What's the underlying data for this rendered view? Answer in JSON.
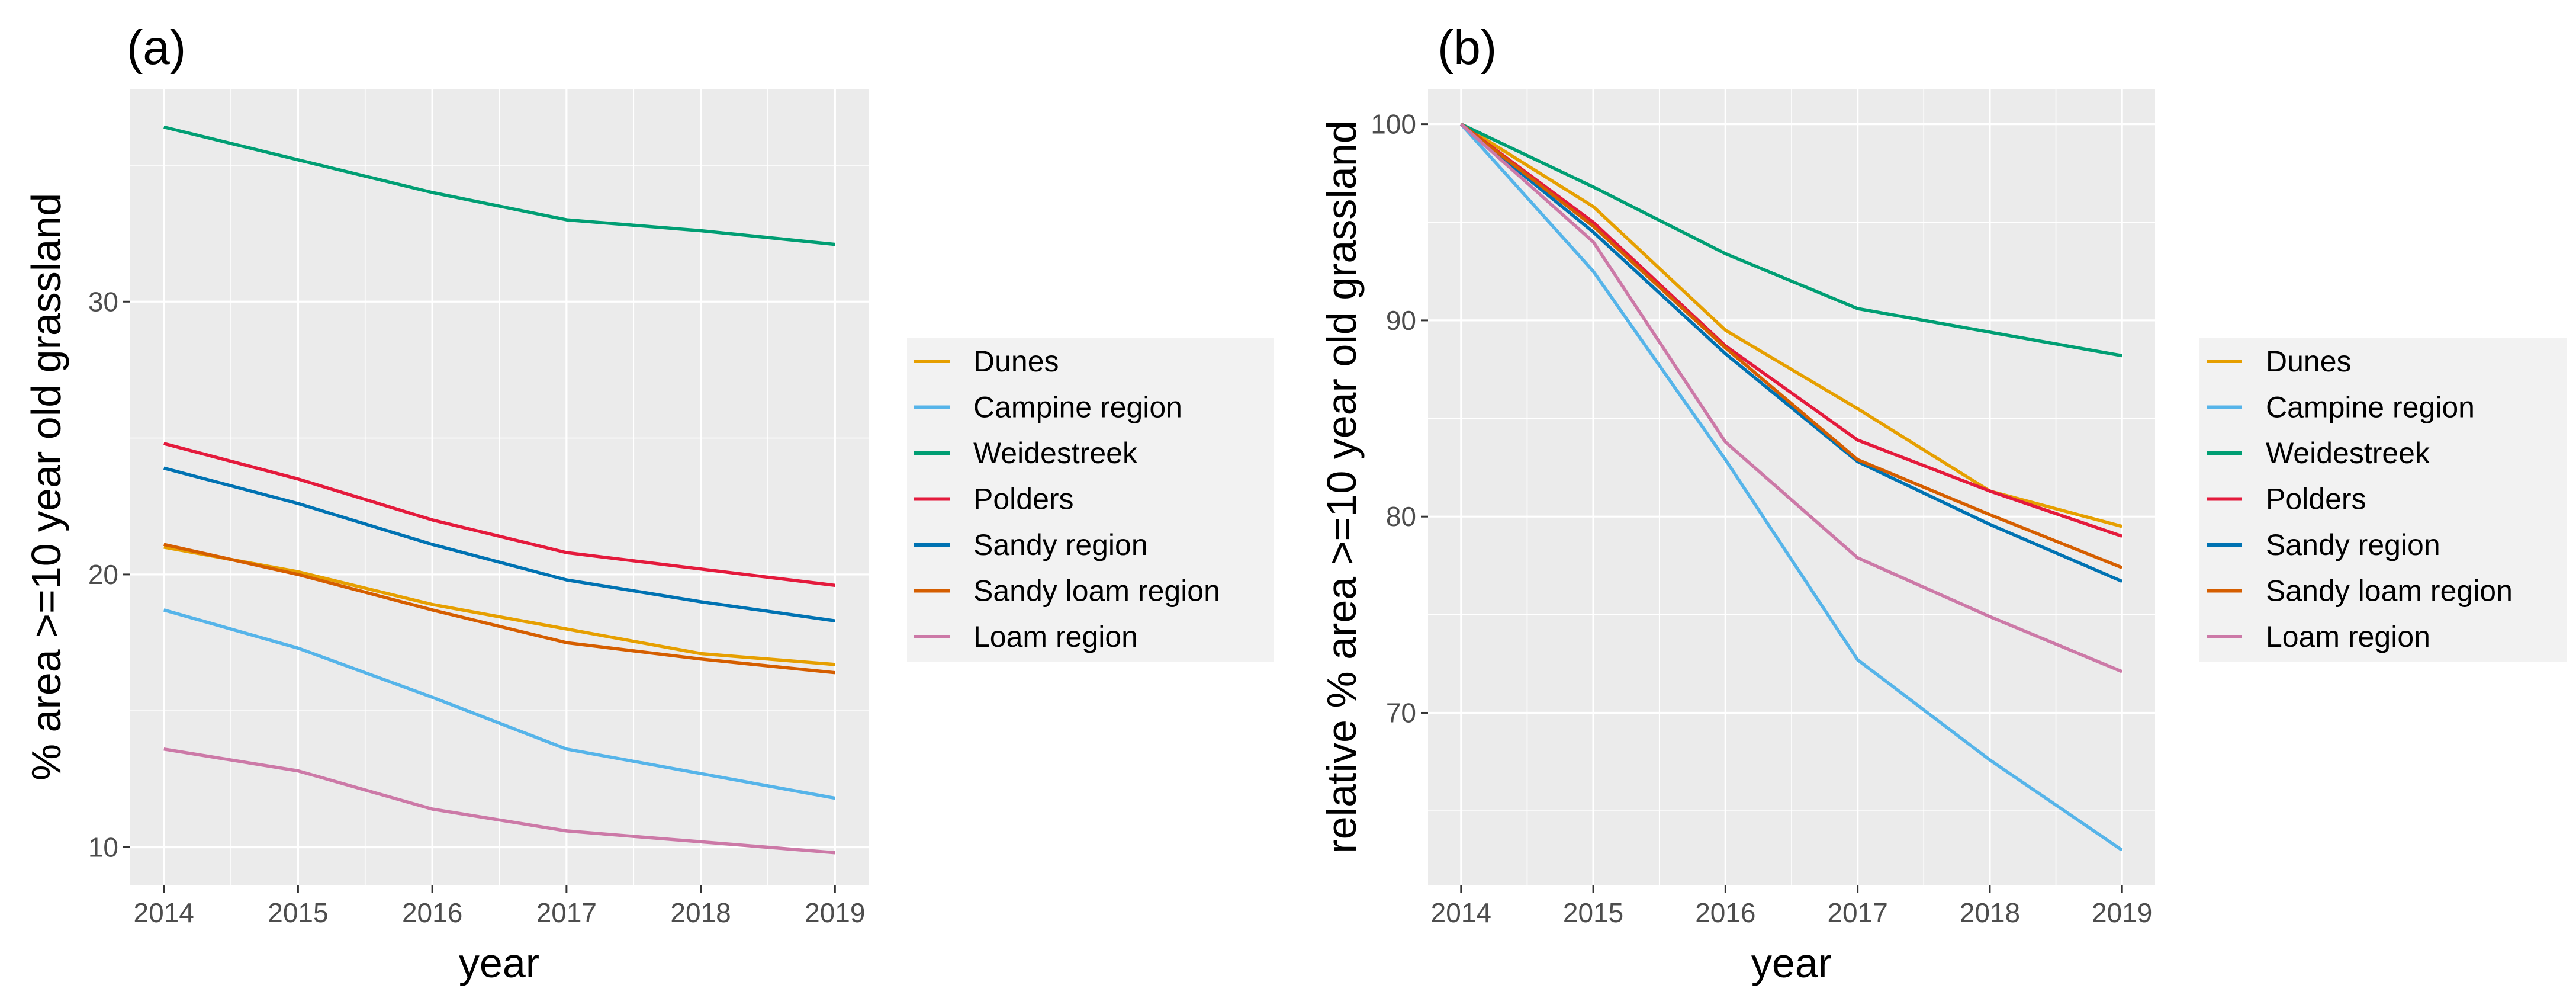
{
  "chart_data": [
    {
      "type": "line",
      "tag": "(a)",
      "xlabel": "year",
      "ylabel": "% area >=10 year old grassland",
      "x": [
        2014,
        2015,
        2016,
        2017,
        2018,
        2019
      ],
      "xlim": [
        2013.75,
        2019.25
      ],
      "ylim": [
        8.6,
        37.8
      ],
      "yticks": [
        10,
        20,
        30
      ],
      "series": [
        {
          "name": "Dunes",
          "color": "#E69F00",
          "values": [
            21.0,
            20.1,
            18.9,
            18.0,
            17.1,
            16.7
          ]
        },
        {
          "name": "Campine region",
          "color": "#56B4E9",
          "values": [
            18.7,
            17.3,
            15.5,
            13.6,
            12.7,
            11.8
          ]
        },
        {
          "name": "Weidestreek",
          "color": "#009E73",
          "values": [
            36.4,
            35.2,
            34.0,
            33.0,
            32.6,
            32.1
          ]
        },
        {
          "name": "Polders",
          "color": "#E41A3C",
          "values": [
            24.8,
            23.5,
            22.0,
            20.8,
            20.2,
            19.6
          ]
        },
        {
          "name": "Sandy region",
          "color": "#0072B2",
          "values": [
            23.9,
            22.6,
            21.1,
            19.8,
            19.0,
            18.3
          ]
        },
        {
          "name": "Sandy loam region",
          "color": "#D55E00",
          "values": [
            21.1,
            20.0,
            18.7,
            17.5,
            16.9,
            16.4
          ]
        },
        {
          "name": "Loam region",
          "color": "#CC79A7",
          "values": [
            13.6,
            12.8,
            11.4,
            10.6,
            10.2,
            9.8
          ]
        }
      ]
    },
    {
      "type": "line",
      "tag": "(b)",
      "xlabel": "year",
      "ylabel": "relative % area >=10 year old grassland",
      "x": [
        2014,
        2015,
        2016,
        2017,
        2018,
        2019
      ],
      "xlim": [
        2013.75,
        2019.25
      ],
      "ylim": [
        61.2,
        101.8
      ],
      "yticks": [
        70,
        80,
        90,
        100
      ],
      "series": [
        {
          "name": "Dunes",
          "color": "#E69F00",
          "values": [
            100,
            95.8,
            89.5,
            85.5,
            81.3,
            79.5
          ]
        },
        {
          "name": "Campine region",
          "color": "#56B4E9",
          "values": [
            100,
            92.5,
            82.9,
            72.7,
            67.6,
            63.0
          ]
        },
        {
          "name": "Weidestreek",
          "color": "#009E73",
          "values": [
            100,
            96.8,
            93.4,
            90.6,
            89.4,
            88.2
          ]
        },
        {
          "name": "Polders",
          "color": "#E41A3C",
          "values": [
            100,
            95.0,
            88.7,
            83.9,
            81.3,
            79.0
          ]
        },
        {
          "name": "Sandy region",
          "color": "#0072B2",
          "values": [
            100,
            94.5,
            88.3,
            82.8,
            79.6,
            76.7
          ]
        },
        {
          "name": "Sandy loam region",
          "color": "#D55E00",
          "values": [
            100,
            94.8,
            88.6,
            82.9,
            80.1,
            77.4
          ]
        },
        {
          "name": "Loam region",
          "color": "#CC79A7",
          "values": [
            100,
            94.0,
            83.8,
            77.9,
            74.9,
            72.1
          ]
        }
      ]
    }
  ],
  "legend": {
    "items": [
      {
        "label": "Dunes",
        "color": "#E69F00"
      },
      {
        "label": "Campine region",
        "color": "#56B4E9"
      },
      {
        "label": "Weidestreek",
        "color": "#009E73"
      },
      {
        "label": "Polders",
        "color": "#E41A3C"
      },
      {
        "label": "Sandy region",
        "color": "#0072B2"
      },
      {
        "label": "Sandy loam region",
        "color": "#D55E00"
      },
      {
        "label": "Loam region",
        "color": "#CC79A7"
      }
    ]
  }
}
